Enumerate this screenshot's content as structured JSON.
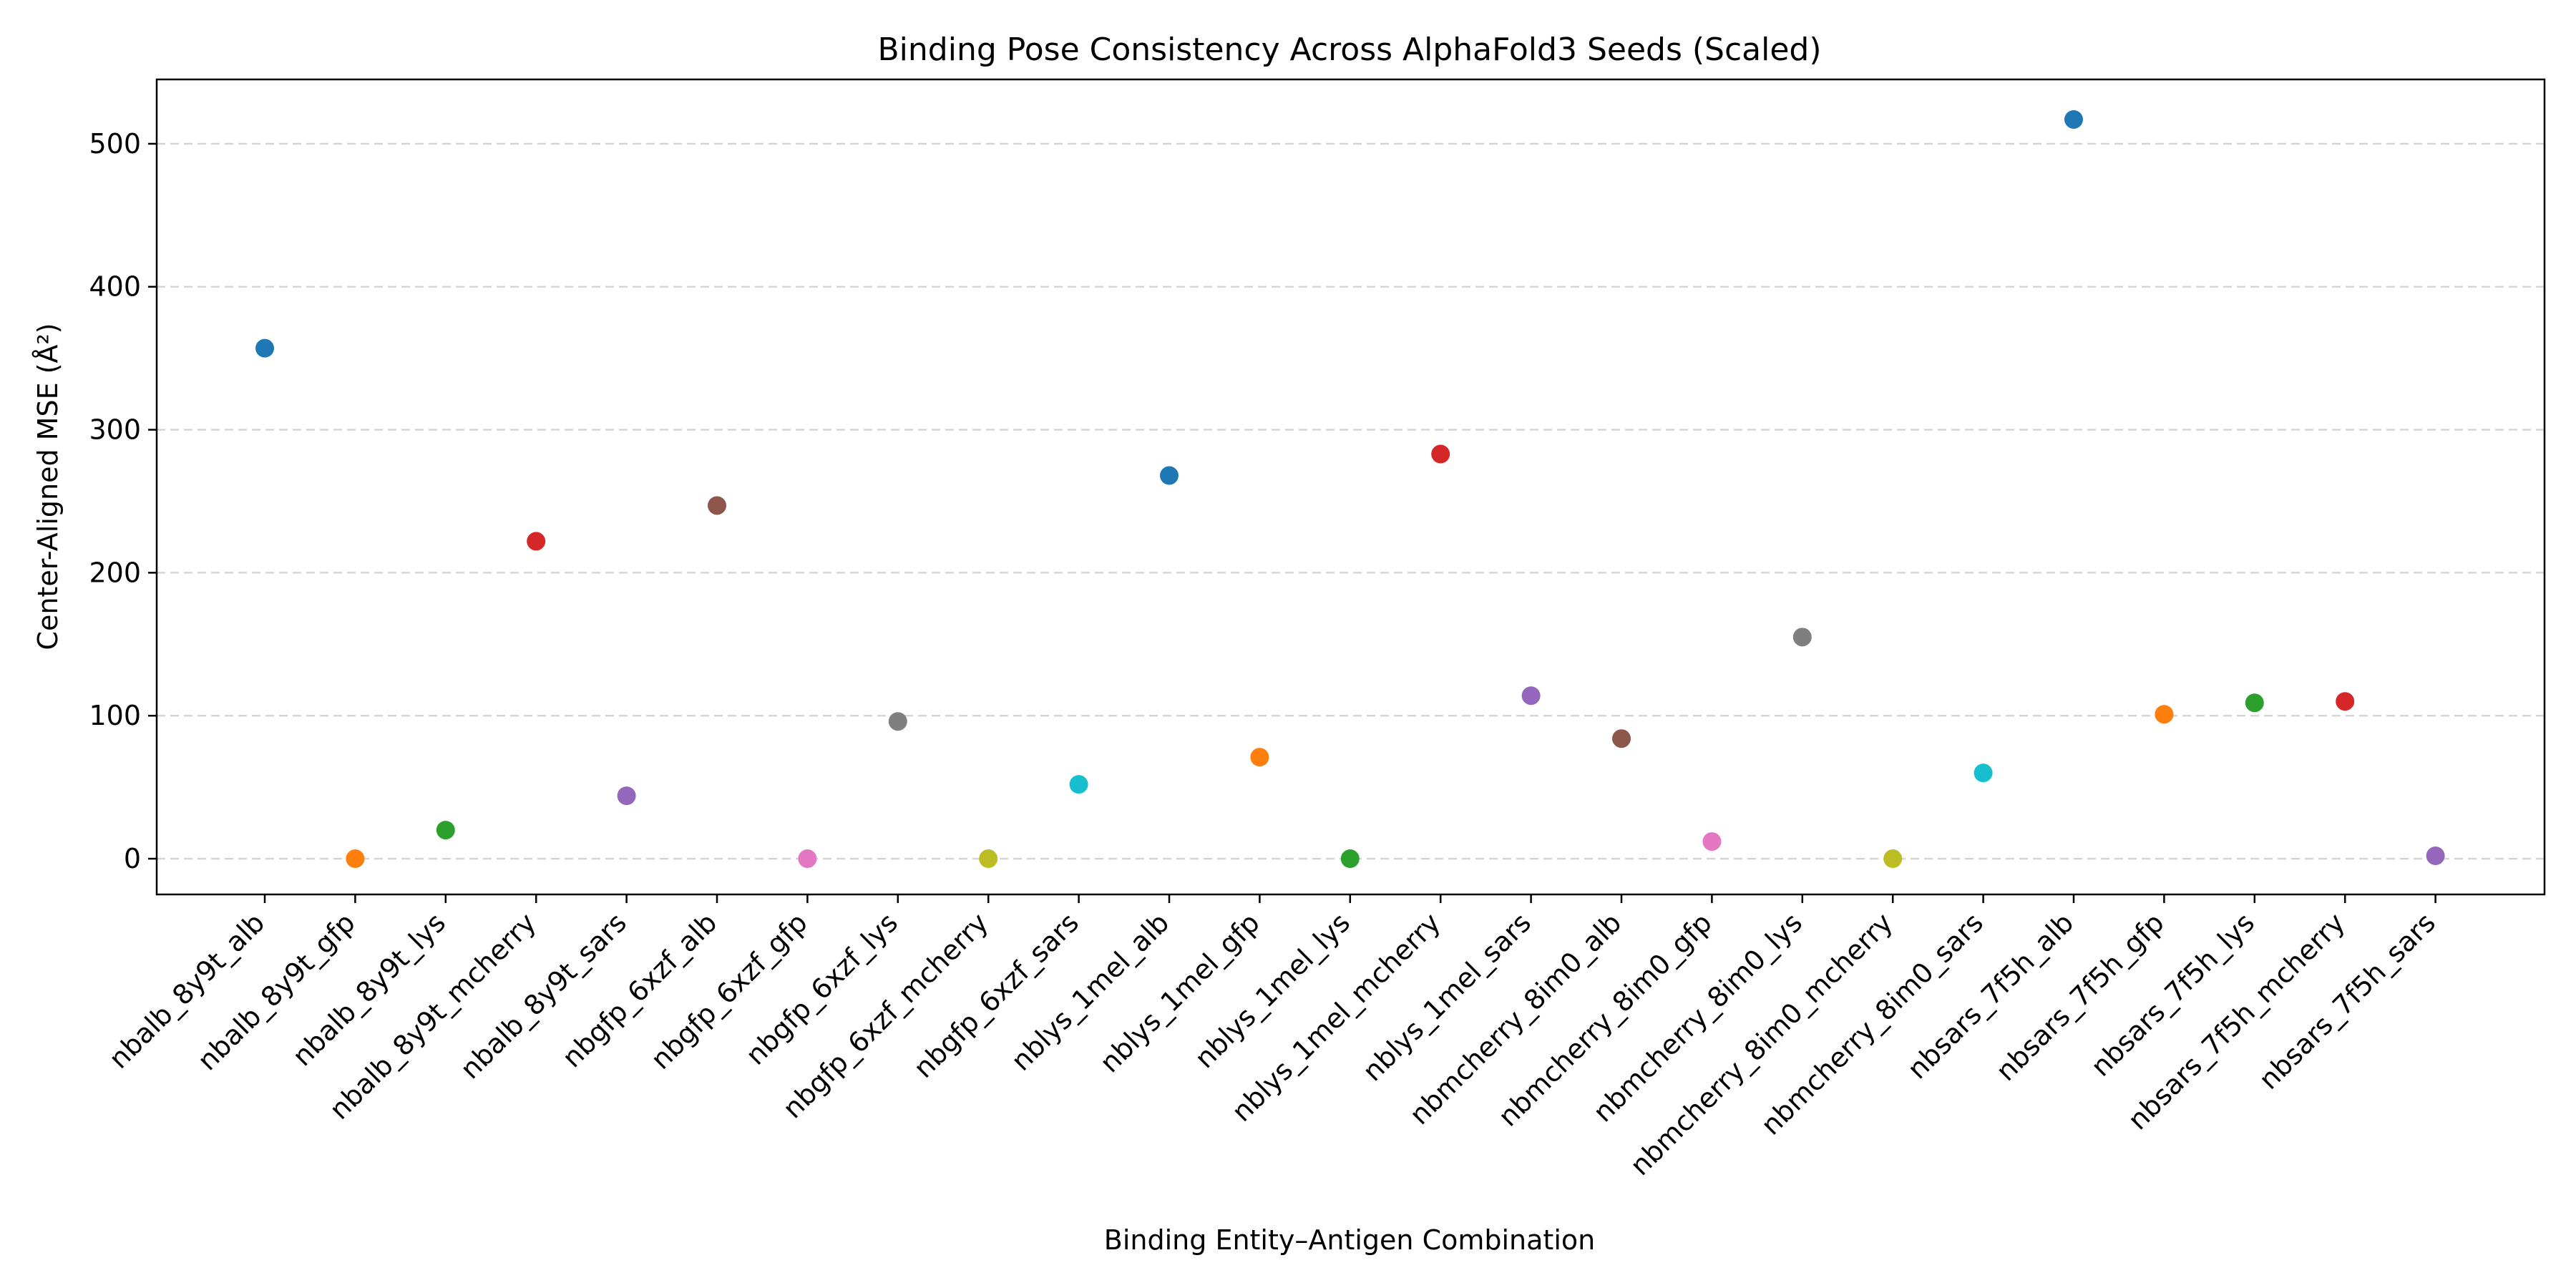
{
  "chart_data": {
    "type": "scatter",
    "title": "Binding Pose Consistency Across AlphaFold3 Seeds (Scaled)",
    "xlabel": "Binding Entity–Antigen Combination",
    "ylabel": "Center-Aligned MSE (Å²)",
    "ylim": [
      -25,
      545
    ],
    "yticks": [
      0,
      100,
      200,
      300,
      400,
      500
    ],
    "grid": "y-dashed",
    "categories": [
      "nbalb_8y9t_alb",
      "nbalb_8y9t_gfp",
      "nbalb_8y9t_lys",
      "nbalb_8y9t_mcherry",
      "nbalb_8y9t_sars",
      "nbgfp_6xzf_alb",
      "nbgfp_6xzf_gfp",
      "nbgfp_6xzf_lys",
      "nbgfp_6xzf_mcherry",
      "nbgfp_6xzf_sars",
      "nblys_1mel_alb",
      "nblys_1mel_gfp",
      "nblys_1mel_lys",
      "nblys_1mel_mcherry",
      "nblys_1mel_sars",
      "nbmcherry_8im0_alb",
      "nbmcherry_8im0_gfp",
      "nbmcherry_8im0_lys",
      "nbmcherry_8im0_mcherry",
      "nbmcherry_8im0_sars",
      "nbsars_7f5h_alb",
      "nbsars_7f5h_gfp",
      "nbsars_7f5h_lys",
      "nbsars_7f5h_mcherry",
      "nbsars_7f5h_sars"
    ],
    "values": [
      357,
      0,
      20,
      222,
      44,
      247,
      0,
      96,
      0,
      52,
      268,
      71,
      0,
      283,
      114,
      84,
      12,
      155,
      0,
      60,
      517,
      101,
      109,
      110,
      2
    ],
    "colors": [
      "#1f77b4",
      "#ff7f0e",
      "#2ca02c",
      "#d62728",
      "#9467bd",
      "#8c564b",
      "#e377c2",
      "#7f7f7f",
      "#bcbd22",
      "#17becf"
    ]
  }
}
